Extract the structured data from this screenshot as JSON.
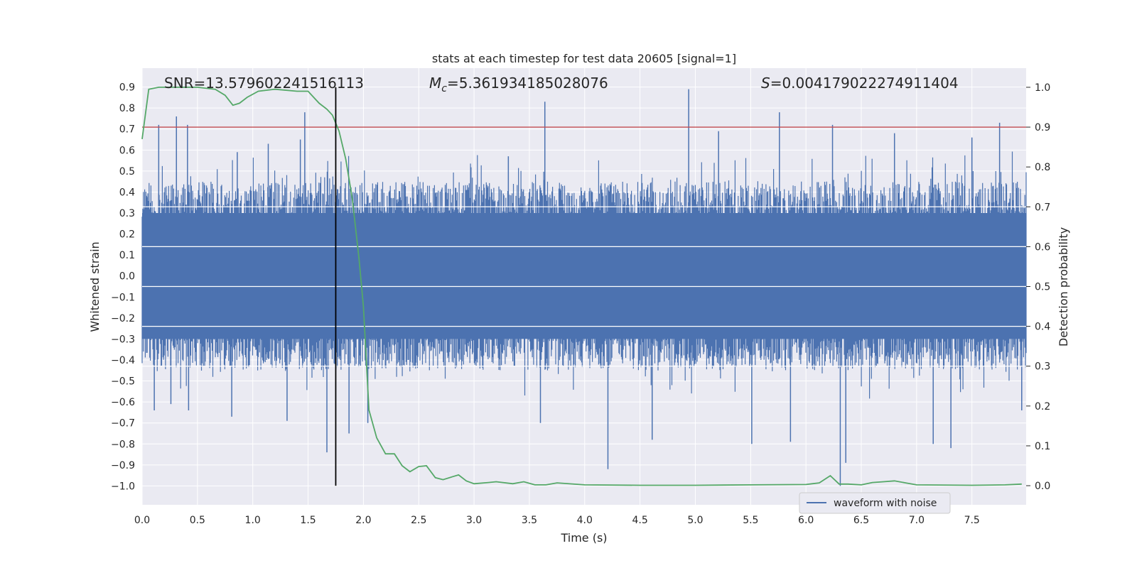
{
  "chart_data": {
    "type": "line",
    "title": "stats at each timestep for test data 20605 [signal=1]",
    "xlabel": "Time (s)",
    "ylabel": "Whitened strain",
    "y2label": "Detection probability",
    "xlim": [
      0,
      7.99
    ],
    "ylim": [
      -1.09,
      0.99
    ],
    "y2lim": [
      -0.048,
      1.048
    ],
    "x_ticks": [
      0.0,
      0.5,
      1.0,
      1.5,
      2.0,
      2.5,
      3.0,
      3.5,
      4.0,
      4.5,
      5.0,
      5.5,
      6.0,
      6.5,
      7.0,
      7.5
    ],
    "x_tick_labels": [
      "0.0",
      "0.5",
      "1.0",
      "1.5",
      "2.0",
      "2.5",
      "3.0",
      "3.5",
      "4.0",
      "4.5",
      "5.0",
      "5.5",
      "6.0",
      "6.5",
      "7.0",
      "7.5"
    ],
    "y_ticks": [
      0.9,
      0.8,
      0.7,
      0.6,
      0.5,
      0.4,
      0.3,
      0.2,
      0.1,
      0.0,
      -0.1,
      -0.2,
      -0.3,
      -0.4,
      -0.5,
      -0.6,
      -0.7,
      -0.8,
      -0.9,
      -1.0
    ],
    "y_tick_labels": [
      "0.9",
      "0.8",
      "0.7",
      "0.6",
      "0.5",
      "0.4",
      "0.3",
      "0.2",
      "0.1",
      "0.0",
      "−0.1",
      "−0.2",
      "−0.3",
      "−0.4",
      "−0.5",
      "−0.6",
      "−0.7",
      "−0.8",
      "−0.9",
      "−1.0"
    ],
    "y2_ticks": [
      1.0,
      0.9,
      0.8,
      0.7,
      0.6,
      0.5,
      0.4,
      0.3,
      0.2,
      0.1,
      0.0
    ],
    "y2_tick_labels": [
      "1.0",
      "0.9",
      "0.8",
      "0.7",
      "0.6",
      "0.5",
      "0.4",
      "0.3",
      "0.2",
      "0.1",
      "0.0"
    ],
    "grid": true,
    "legend": {
      "entries": [
        "waveform with noise"
      ],
      "placement": "lower right"
    },
    "annotations": {
      "snr": "SNR=13.579602241516113",
      "mc_symbol": "M",
      "mc_sub": "c",
      "mc_value": "=5.361934185028076",
      "s_symbol": "S",
      "s_value": "=0.004179022274911404"
    },
    "threshold_y2": 0.9,
    "marker_time": 1.75,
    "waveform": {
      "name": "waveform with noise",
      "color": "#4c72b0",
      "typical_min": -0.45,
      "typical_max": 0.45,
      "spikes": [
        {
          "x": 0.15,
          "y": 0.72
        },
        {
          "x": 0.31,
          "y": 0.76
        },
        {
          "x": 0.41,
          "y": 0.72
        },
        {
          "x": 0.11,
          "y": -0.64
        },
        {
          "x": 0.26,
          "y": -0.61
        },
        {
          "x": 0.42,
          "y": -0.64
        },
        {
          "x": 0.86,
          "y": 0.59
        },
        {
          "x": 0.81,
          "y": -0.67
        },
        {
          "x": 1.14,
          "y": 0.63
        },
        {
          "x": 1.43,
          "y": 0.65
        },
        {
          "x": 1.47,
          "y": 0.78
        },
        {
          "x": 1.31,
          "y": -0.69
        },
        {
          "x": 1.67,
          "y": -0.84
        },
        {
          "x": 1.87,
          "y": -0.75
        },
        {
          "x": 2.04,
          "y": -0.7
        },
        {
          "x": 3.31,
          "y": 0.57
        },
        {
          "x": 3.64,
          "y": 0.83
        },
        {
          "x": 3.6,
          "y": -0.7
        },
        {
          "x": 4.21,
          "y": -0.92
        },
        {
          "x": 4.61,
          "y": -0.78
        },
        {
          "x": 4.94,
          "y": 0.89
        },
        {
          "x": 5.21,
          "y": 0.69
        },
        {
          "x": 5.51,
          "y": -0.8
        },
        {
          "x": 5.76,
          "y": 0.78
        },
        {
          "x": 5.86,
          "y": -0.79
        },
        {
          "x": 6.24,
          "y": 0.72
        },
        {
          "x": 6.31,
          "y": -1.0
        },
        {
          "x": 6.36,
          "y": -0.89
        },
        {
          "x": 6.8,
          "y": 0.68
        },
        {
          "x": 7.15,
          "y": -0.8
        },
        {
          "x": 7.31,
          "y": -0.82
        },
        {
          "x": 7.5,
          "y": 0.66
        },
        {
          "x": 7.75,
          "y": 0.73
        },
        {
          "x": 7.95,
          "y": -0.64
        }
      ]
    },
    "probability": {
      "name": "Detection probability",
      "color": "#55a868",
      "x": [
        0.0,
        0.06,
        0.15,
        0.3,
        0.5,
        0.66,
        0.75,
        0.82,
        0.88,
        0.95,
        1.05,
        1.2,
        1.4,
        1.5,
        1.6,
        1.67,
        1.72,
        1.78,
        1.84,
        1.9,
        1.96,
        2.0,
        2.05,
        2.12,
        2.2,
        2.28,
        2.35,
        2.42,
        2.5,
        2.57,
        2.65,
        2.72,
        2.8,
        2.86,
        2.93,
        3.0,
        3.13,
        3.2,
        3.35,
        3.45,
        3.55,
        3.65,
        3.75,
        4.0,
        4.5,
        5.0,
        5.5,
        6.0,
        6.12,
        6.22,
        6.3,
        6.38,
        6.5,
        6.6,
        6.7,
        6.8,
        6.9,
        7.0,
        7.5,
        7.8,
        7.95
      ],
      "y": [
        0.87,
        0.995,
        1.0,
        1.0,
        1.0,
        0.995,
        0.98,
        0.955,
        0.96,
        0.975,
        0.99,
        0.995,
        0.99,
        0.99,
        0.96,
        0.945,
        0.93,
        0.89,
        0.82,
        0.72,
        0.57,
        0.45,
        0.19,
        0.12,
        0.08,
        0.08,
        0.05,
        0.035,
        0.048,
        0.05,
        0.02,
        0.015,
        0.022,
        0.027,
        0.012,
        0.005,
        0.008,
        0.01,
        0.005,
        0.01,
        0.002,
        0.002,
        0.007,
        0.002,
        0.001,
        0.001,
        0.002,
        0.003,
        0.007,
        0.025,
        0.004,
        0.004,
        0.002,
        0.008,
        0.01,
        0.012,
        0.007,
        0.002,
        0.001,
        0.002,
        0.004
      ]
    },
    "colors": {
      "background": "#eaeaf2",
      "grid": "#ffffff",
      "threshold": "#c44e52",
      "marker": "#000000"
    }
  }
}
